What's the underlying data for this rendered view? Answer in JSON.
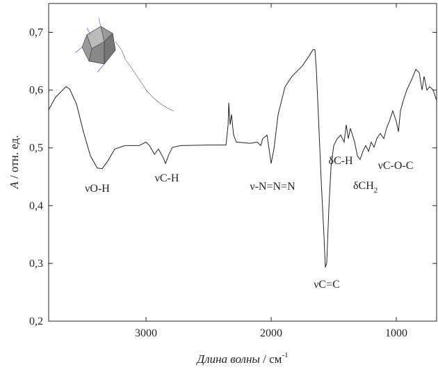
{
  "chart_data": {
    "type": "line",
    "ylabel": [
      "A",
      " / отн. ед."
    ],
    "xlabel": [
      "Длина волны",
      " / см",
      "-1"
    ],
    "x": [
      3778,
      3722,
      3639,
      3611,
      3556,
      3500,
      3444,
      3389,
      3350,
      3306,
      3250,
      3167,
      3056,
      3000,
      2972,
      2933,
      2900,
      2861,
      2844,
      2817,
      2789,
      2722,
      2500,
      2361,
      2344,
      2339,
      2328,
      2317,
      2300,
      2278,
      2167,
      2111,
      2083,
      2067,
      2033,
      2011,
      2000,
      1978,
      1944,
      1889,
      1833,
      1750,
      1694,
      1667,
      1650,
      1639,
      1622,
      1600,
      1578,
      1567,
      1556,
      1539,
      1522,
      1500,
      1472,
      1444,
      1417,
      1400,
      1383,
      1367,
      1350,
      1333,
      1311,
      1289,
      1267,
      1244,
      1222,
      1200,
      1178,
      1156,
      1128,
      1100,
      1078,
      1056,
      1028,
      1000,
      983,
      967,
      944,
      917,
      878,
      844,
      817,
      794,
      778,
      756,
      733,
      706,
      678
    ],
    "series": [
      {
        "color": "#222222",
        "values": [
          0.566,
          0.588,
          0.606,
          0.602,
          0.576,
          0.528,
          0.486,
          0.465,
          0.464,
          0.477,
          0.498,
          0.504,
          0.504,
          0.51,
          0.504,
          0.489,
          0.498,
          0.482,
          0.473,
          0.489,
          0.501,
          0.504,
          0.505,
          0.505,
          0.54,
          0.578,
          0.54,
          0.558,
          0.522,
          0.51,
          0.508,
          0.51,
          0.504,
          0.516,
          0.522,
          0.489,
          0.473,
          0.498,
          0.558,
          0.606,
          0.624,
          0.642,
          0.66,
          0.67,
          0.67,
          0.636,
          0.552,
          0.443,
          0.347,
          0.293,
          0.301,
          0.395,
          0.467,
          0.504,
          0.516,
          0.522,
          0.51,
          0.54,
          0.516,
          0.534,
          0.522,
          0.51,
          0.486,
          0.48,
          0.494,
          0.504,
          0.494,
          0.51,
          0.501,
          0.516,
          0.525,
          0.516,
          0.534,
          0.546,
          0.564,
          0.546,
          0.528,
          0.564,
          0.582,
          0.6,
          0.618,
          0.636,
          0.63,
          0.6,
          0.624,
          0.6,
          0.606,
          0.6,
          0.582
        ]
      }
    ],
    "xlim": [
      3778,
      678
    ],
    "ylim": [
      0.2,
      0.75
    ],
    "xticks": [
      3000,
      2000,
      1000
    ],
    "yticks": [
      {
        "value": 0.2,
        "label": "0,2"
      },
      {
        "value": 0.3,
        "label": "0,3"
      },
      {
        "value": 0.4,
        "label": "0,4"
      },
      {
        "value": 0.5,
        "label": "0,5"
      },
      {
        "value": 0.6,
        "label": "0,6"
      },
      {
        "value": 0.7,
        "label": "0,7"
      }
    ],
    "annotations": [
      [
        "νO-H"
      ],
      [
        "νC-H"
      ],
      [
        "ν-N=N=N"
      ],
      [
        "νC=C"
      ],
      [
        "δC-H"
      ],
      [
        "δCH",
        "2"
      ],
      [
        "νC-O-C"
      ]
    ]
  }
}
